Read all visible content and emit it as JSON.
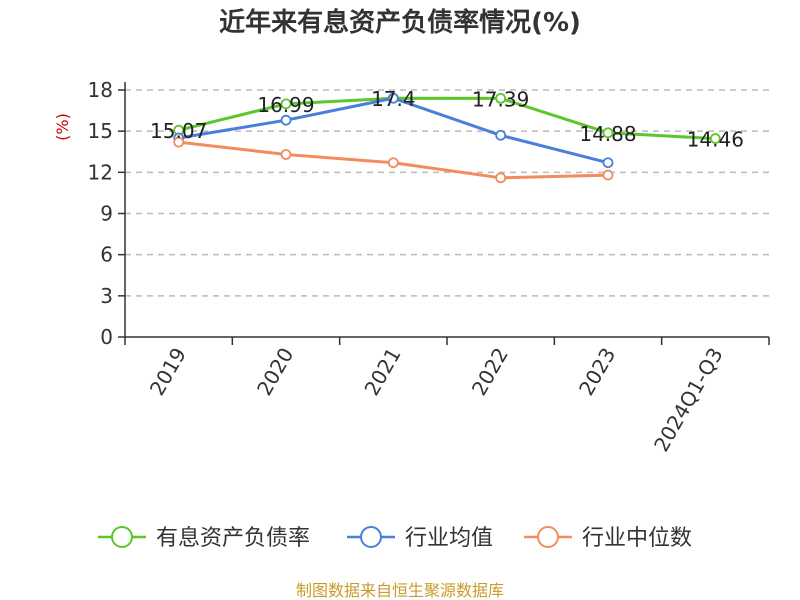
{
  "chart_data": {
    "type": "line",
    "title": "近年来有息资产负债率情况(%)",
    "ylabel": "(%)",
    "ylim": [
      0,
      18
    ],
    "yticks": [
      "0",
      "3",
      "6",
      "9",
      "12",
      "15",
      "18"
    ],
    "categories": [
      "2019",
      "2020",
      "2021",
      "2022",
      "2023",
      "2024Q1-Q3"
    ],
    "grid": true,
    "legend_position": "bottom",
    "series": [
      {
        "name": "有息资产负债率",
        "color": "#5cc62a",
        "values": [
          15.07,
          16.99,
          17.4,
          17.39,
          14.88,
          14.46
        ],
        "labels": [
          "15.07",
          "16.99",
          "17.4",
          "17.39",
          "14.88",
          "14.46"
        ]
      },
      {
        "name": "行业均值",
        "color": "#4a7fd9",
        "values": [
          14.5,
          15.8,
          17.4,
          14.7,
          12.7,
          null
        ]
      },
      {
        "name": "行业中位数",
        "color": "#f28c5e",
        "values": [
          14.2,
          13.3,
          12.7,
          11.6,
          11.8,
          null
        ]
      }
    ],
    "source": "制图数据来自恒生聚源数据库",
    "colors": {
      "axis": "#333333",
      "grid": "#bbbbbb",
      "ylabel": "#cc0000",
      "source": "#c89b2d"
    }
  }
}
